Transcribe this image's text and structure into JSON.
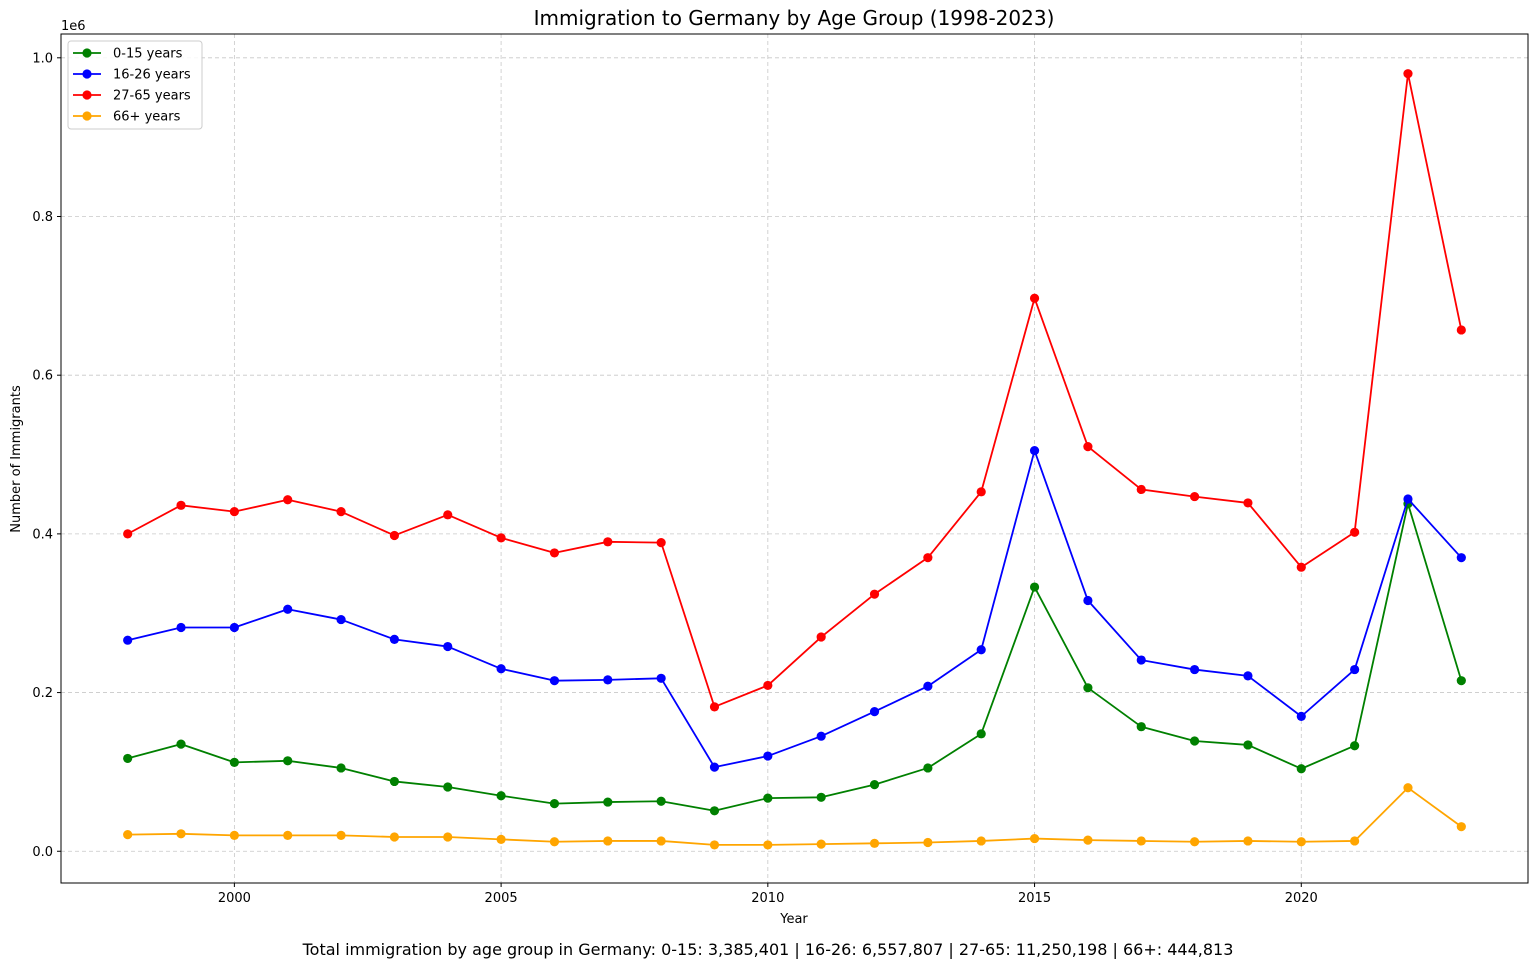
{
  "chart_data": {
    "type": "line",
    "title": "Immigration to Germany by Age Group (1998-2023)",
    "xlabel": "Year",
    "ylabel": "Number of Immigrants",
    "y_offset_label": "1e6",
    "x": [
      1998,
      1999,
      2000,
      2001,
      2002,
      2003,
      2004,
      2005,
      2006,
      2007,
      2008,
      2009,
      2010,
      2011,
      2012,
      2013,
      2014,
      2015,
      2016,
      2017,
      2018,
      2019,
      2020,
      2021,
      2022,
      2023
    ],
    "xlim": [
      1996.75,
      2024.25
    ],
    "ylim": [
      -0.04,
      1.03
    ],
    "x_ticks": [
      2000,
      2005,
      2010,
      2015,
      2020
    ],
    "x_tick_labels": [
      "2000",
      "2005",
      "2010",
      "2015",
      "2020"
    ],
    "y_ticks": [
      0.0,
      0.2,
      0.4,
      0.6,
      0.8,
      1.0
    ],
    "y_tick_labels": [
      "0.0",
      "0.2",
      "0.4",
      "0.6",
      "0.8",
      "1.0"
    ],
    "grid": true,
    "legend_position": "top-left",
    "series": [
      {
        "name": "0-15 years",
        "color": "#008000",
        "values": [
          0.117,
          0.135,
          0.112,
          0.114,
          0.105,
          0.088,
          0.081,
          0.07,
          0.06,
          0.062,
          0.063,
          0.051,
          0.067,
          0.068,
          0.084,
          0.105,
          0.148,
          0.333,
          0.206,
          0.157,
          0.139,
          0.134,
          0.104,
          0.133,
          0.438,
          0.215
        ]
      },
      {
        "name": "16-26 years",
        "color": "#0000ff",
        "values": [
          0.266,
          0.282,
          0.282,
          0.305,
          0.292,
          0.267,
          0.258,
          0.23,
          0.215,
          0.216,
          0.218,
          0.106,
          0.12,
          0.145,
          0.176,
          0.208,
          0.254,
          0.505,
          0.316,
          0.241,
          0.229,
          0.221,
          0.17,
          0.229,
          0.444,
          0.37
        ]
      },
      {
        "name": "27-65 years",
        "color": "#ff0000",
        "values": [
          0.4,
          0.436,
          0.428,
          0.443,
          0.428,
          0.398,
          0.424,
          0.395,
          0.376,
          0.39,
          0.389,
          0.182,
          0.209,
          0.27,
          0.324,
          0.37,
          0.453,
          0.697,
          0.51,
          0.456,
          0.447,
          0.439,
          0.358,
          0.402,
          0.98,
          0.657
        ]
      },
      {
        "name": "66+ years",
        "color": "#ffa500",
        "values": [
          0.021,
          0.022,
          0.02,
          0.02,
          0.02,
          0.018,
          0.018,
          0.015,
          0.012,
          0.013,
          0.013,
          0.008,
          0.008,
          0.009,
          0.01,
          0.011,
          0.013,
          0.016,
          0.014,
          0.013,
          0.012,
          0.013,
          0.012,
          0.013,
          0.08,
          0.031
        ]
      }
    ]
  },
  "footer": {
    "text": "Total immigration by age group in Germany: 0-15: 3,385,401 | 16-26: 6,557,807 | 27-65: 11,250,198 | 66+: 444,813"
  }
}
